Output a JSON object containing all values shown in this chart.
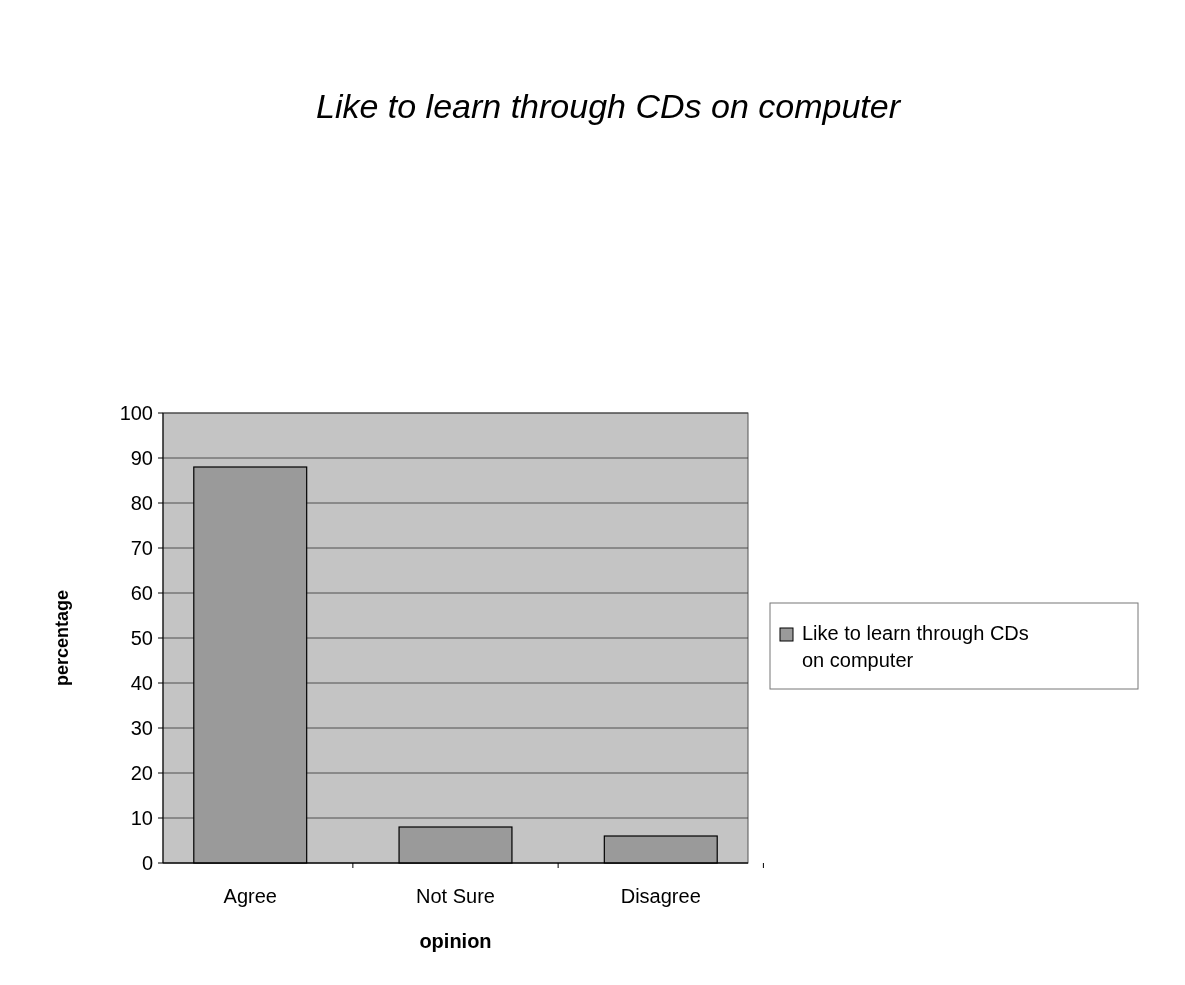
{
  "chart_data": {
    "type": "bar",
    "title": "Like to learn through CDs on computer",
    "xlabel": "opinion",
    "ylabel": "percentage",
    "categories": [
      "Agree",
      "Not Sure",
      "Disagree"
    ],
    "series": [
      {
        "name": "Like to learn through CDs on computer",
        "color": "#9a9a9a",
        "values": [
          88,
          8,
          6
        ]
      }
    ],
    "ylim": [
      0,
      100
    ],
    "yticks": [
      0,
      10,
      20,
      30,
      40,
      50,
      60,
      70,
      80,
      90,
      100
    ],
    "grid": "y",
    "legend": "right"
  }
}
